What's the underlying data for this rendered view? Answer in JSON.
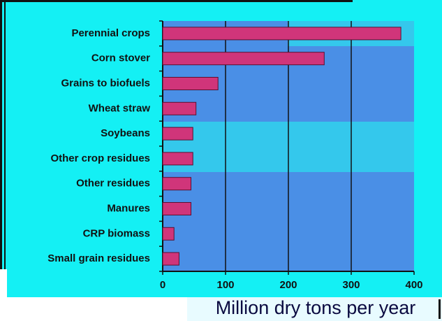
{
  "chart_data": {
    "type": "barh",
    "categories": [
      "Perennial crops",
      "Corn stover",
      "Grains to biofuels",
      "Wheat straw",
      "Soybeans",
      "Other crop residues",
      "Other residues",
      "Manures",
      "CRP biomass",
      "Small grain residues"
    ],
    "values": [
      379,
      257,
      88,
      53,
      48,
      48,
      45,
      45,
      18,
      26
    ],
    "color": "#d0357a",
    "xlabel": "Million dry tons per year",
    "xlim": [
      0,
      400
    ],
    "xticks": [
      0,
      100,
      200,
      300,
      400
    ],
    "grid": true
  }
}
